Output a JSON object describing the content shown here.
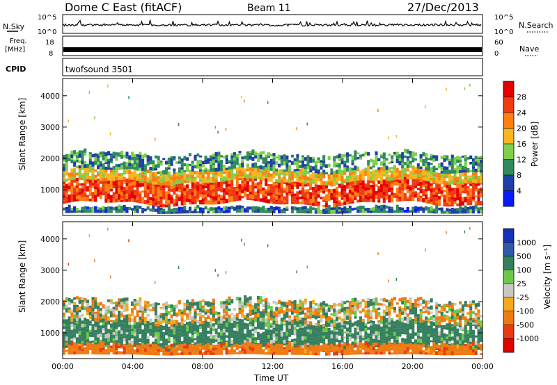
{
  "header": {
    "station": "Dome C East (fitACF)",
    "beam": "Beam 11",
    "date": "27/Dec/2013"
  },
  "noise_panel": {
    "left_label": "N.Sky",
    "right_label": "N.Search",
    "left_ticks": [
      "10^5",
      "10^0"
    ],
    "right_ticks": [
      "10^5",
      "10^0"
    ]
  },
  "freq_panel": {
    "left_label_1": "Freq.",
    "left_label_2": "[MHz]",
    "right_label": "Nave",
    "left_ticks": [
      "18",
      "8"
    ],
    "right_ticks": [
      "60",
      "0"
    ]
  },
  "cpid": {
    "label": "CPID",
    "value": "twofsound 3501"
  },
  "colors": {
    "power_scale": [
      "#0a1aff",
      "#1f3fa8",
      "#2f8a5e",
      "#7fcf4a",
      "#f7b51e",
      "#ff7e10",
      "#f03a12",
      "#e30000"
    ],
    "velocity_scale": [
      "#1730b8",
      "#2f5aa8",
      "#357f5f",
      "#6ac94a",
      "#c8c8c0",
      "#f2a91a",
      "#f07a12",
      "#e83c10",
      "#e00000"
    ]
  },
  "chart_data": [
    {
      "type": "heatmap",
      "title": "",
      "quantity": "Power",
      "ylabel": "Slant Range [km]",
      "xlabel": "",
      "ylim": [
        180,
        4550
      ],
      "yticks": [
        "1000",
        "2000",
        "3000",
        "4000"
      ],
      "colorbar_label": "Power [dB]",
      "colorbar_ticks": [
        "4",
        "8",
        "12",
        "16",
        "20",
        "24",
        "28"
      ],
      "colorbar_range": [
        0,
        32
      ],
      "grid": false,
      "bands": [
        {
          "range_km": [
            550,
            1250
          ],
          "db_value": 26
        },
        {
          "range_km": [
            1250,
            1600
          ],
          "db_value": 18
        },
        {
          "range_km": [
            1600,
            2100
          ],
          "db_value": 10
        },
        {
          "range_km": [
            250,
            400
          ],
          "db_value": 8
        }
      ]
    },
    {
      "type": "heatmap",
      "title": "",
      "quantity": "Velocity",
      "ylabel": "Slant Range [km]",
      "xlabel": "Time UT",
      "ylim": [
        180,
        4550
      ],
      "yticks": [
        "1000",
        "2000",
        "3000",
        "4000"
      ],
      "xticks": [
        "00:00",
        "04:00",
        "08:00",
        "12:00",
        "16:00",
        "20:00",
        "00:00"
      ],
      "colorbar_label": "Velocity [m s⁻¹]",
      "colorbar_ticks": [
        "1000",
        "500",
        "100",
        "25",
        "-25",
        "-100",
        "-500",
        "-1000"
      ],
      "grid": false,
      "bands": [
        {
          "range_km": [
            500,
            1300
          ],
          "velocity": 150
        },
        {
          "range_km": [
            1300,
            2000
          ],
          "velocity": 0
        },
        {
          "range_km": [
            300,
            600
          ],
          "velocity": -200
        }
      ]
    }
  ]
}
